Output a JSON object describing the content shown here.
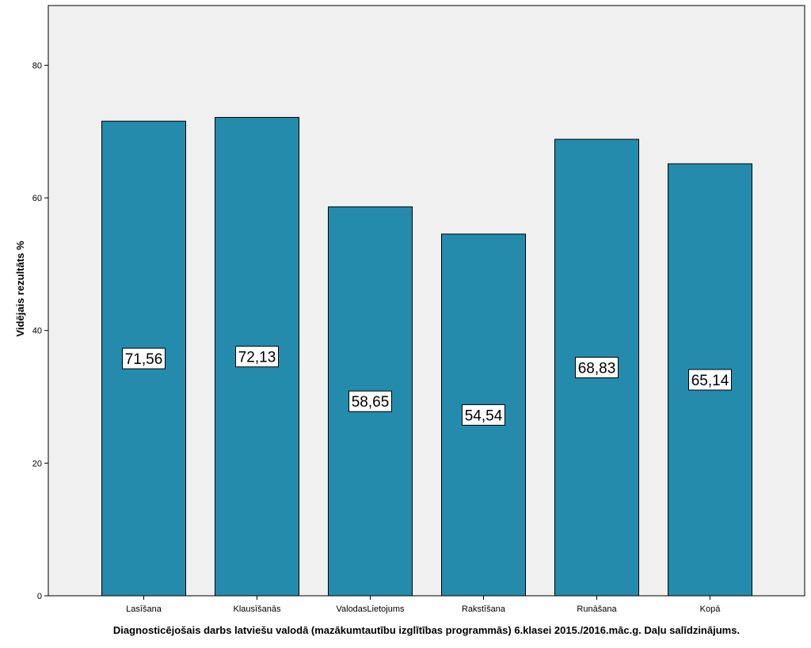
{
  "chart_data": {
    "type": "bar",
    "categories": [
      "Lasīšana",
      "Klausīšanās",
      "ValodasLietojums",
      "Rakstīšana",
      "Runāšana",
      "Kopā"
    ],
    "values": [
      71.56,
      72.13,
      58.65,
      54.54,
      68.83,
      65.14
    ],
    "data_labels": [
      "71,56",
      "72,13",
      "58,65",
      "54,54",
      "68,83",
      "65,14"
    ],
    "xlabel": "Diagnosticējošais darbs latviešu valodā (mazākumtautību izglītības programmās) 6.klasei 2015./2016.māc.g. Daļu salīdzinājums.",
    "ylabel": "Vidējais rezultāts %",
    "ylim": [
      0,
      89
    ],
    "yticks": [
      0,
      20,
      40,
      60,
      80
    ],
    "grid": false,
    "legend": "none",
    "colors": {
      "plot_background": "#f0f0f0",
      "bar_fill": "#248bac",
      "bar_stroke": "#000000",
      "label_box": "#ffffff"
    }
  }
}
